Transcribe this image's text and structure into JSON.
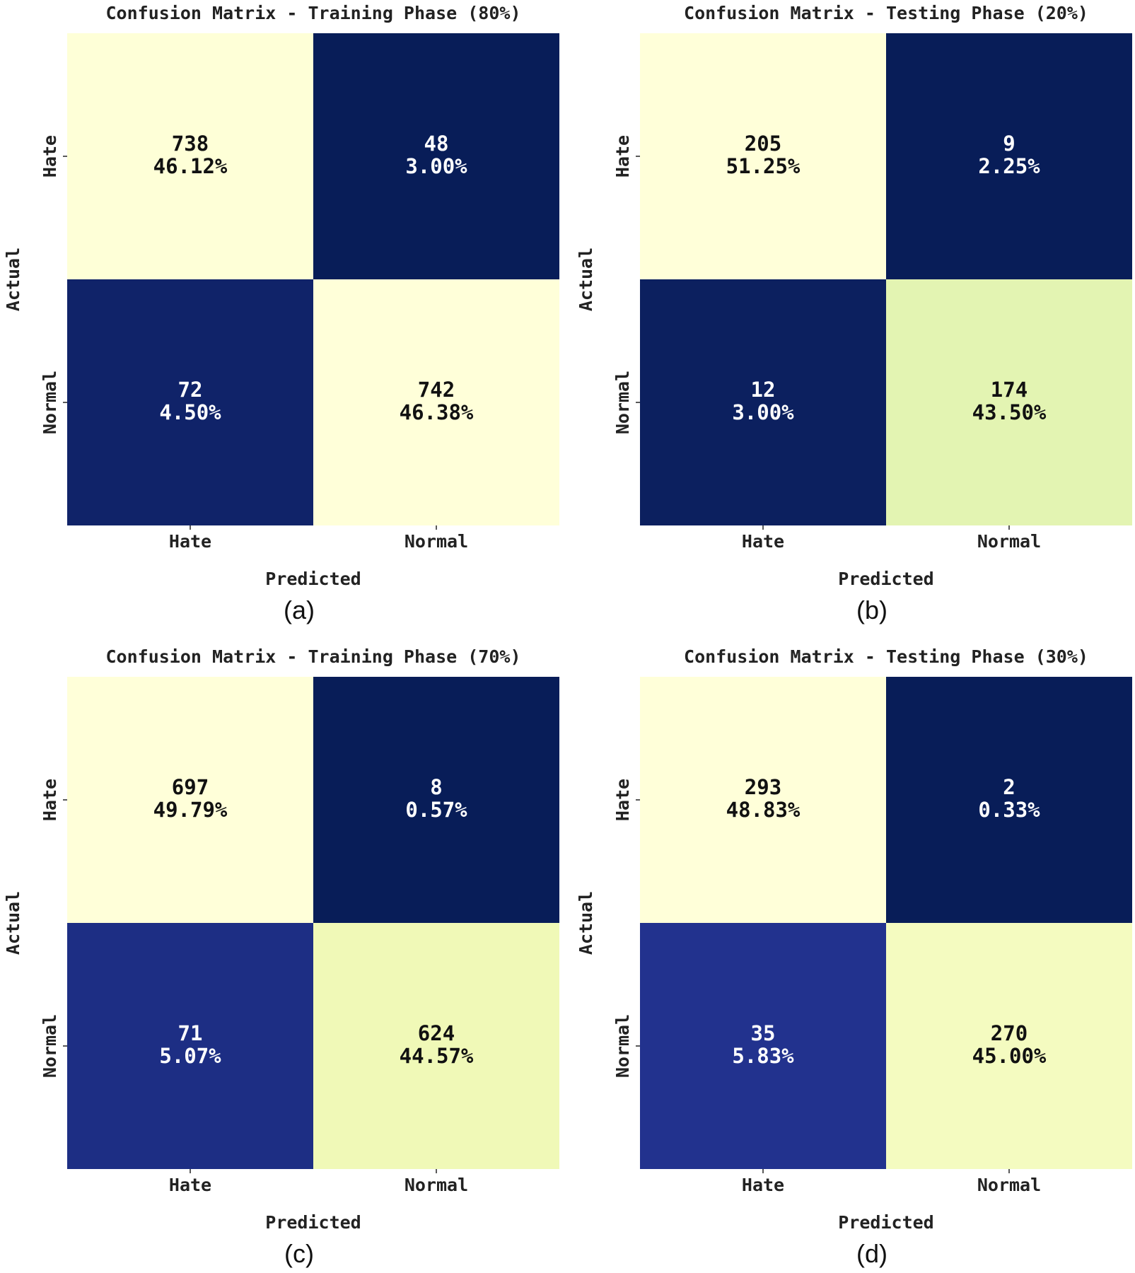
{
  "chart_data": [
    {
      "type": "heatmap",
      "title": "Confusion Matrix - Training Phase (80%)",
      "xlabel": "Predicted",
      "ylabel": "Actual",
      "x_categories": [
        "Hate",
        "Normal"
      ],
      "y_categories": [
        "Hate",
        "Normal"
      ],
      "counts": [
        [
          738,
          48
        ],
        [
          72,
          742
        ]
      ],
      "percent_labels": [
        [
          "46.12%",
          "3.00%"
        ],
        [
          "4.50%",
          "46.38%"
        ]
      ],
      "panel_label": "(a)"
    },
    {
      "type": "heatmap",
      "title": "Confusion Matrix - Testing Phase (20%)",
      "xlabel": "Predicted",
      "ylabel": "Actual",
      "x_categories": [
        "Hate",
        "Normal"
      ],
      "y_categories": [
        "Hate",
        "Normal"
      ],
      "counts": [
        [
          205,
          9
        ],
        [
          12,
          174
        ]
      ],
      "percent_labels": [
        [
          "51.25%",
          "2.25%"
        ],
        [
          "3.00%",
          "43.50%"
        ]
      ],
      "panel_label": "(b)"
    },
    {
      "type": "heatmap",
      "title": "Confusion Matrix - Training Phase (70%)",
      "xlabel": "Predicted",
      "ylabel": "Actual",
      "x_categories": [
        "Hate",
        "Normal"
      ],
      "y_categories": [
        "Hate",
        "Normal"
      ],
      "counts": [
        [
          697,
          8
        ],
        [
          71,
          624
        ]
      ],
      "percent_labels": [
        [
          "49.79%",
          "0.57%"
        ],
        [
          "5.07%",
          "44.57%"
        ]
      ],
      "panel_label": "(c)"
    },
    {
      "type": "heatmap",
      "title": "Confusion Matrix - Testing Phase (30%)",
      "xlabel": "Predicted",
      "ylabel": "Actual",
      "x_categories": [
        "Hate",
        "Normal"
      ],
      "y_categories": [
        "Hate",
        "Normal"
      ],
      "counts": [
        [
          293,
          2
        ],
        [
          35,
          270
        ]
      ],
      "percent_labels": [
        [
          "48.83%",
          "0.33%"
        ],
        [
          "5.83%",
          "45.00%"
        ]
      ],
      "panel_label": "(d)"
    }
  ],
  "colormap": {
    "name": "YlGnBu",
    "stops": [
      "#ffffd9",
      "#edf8b1",
      "#c7e9b4",
      "#7fcdbb",
      "#41b6c4",
      "#1d91c0",
      "#225ea8",
      "#253494",
      "#081d58"
    ],
    "dark_text": "#111111",
    "light_text": "#ffffff"
  }
}
